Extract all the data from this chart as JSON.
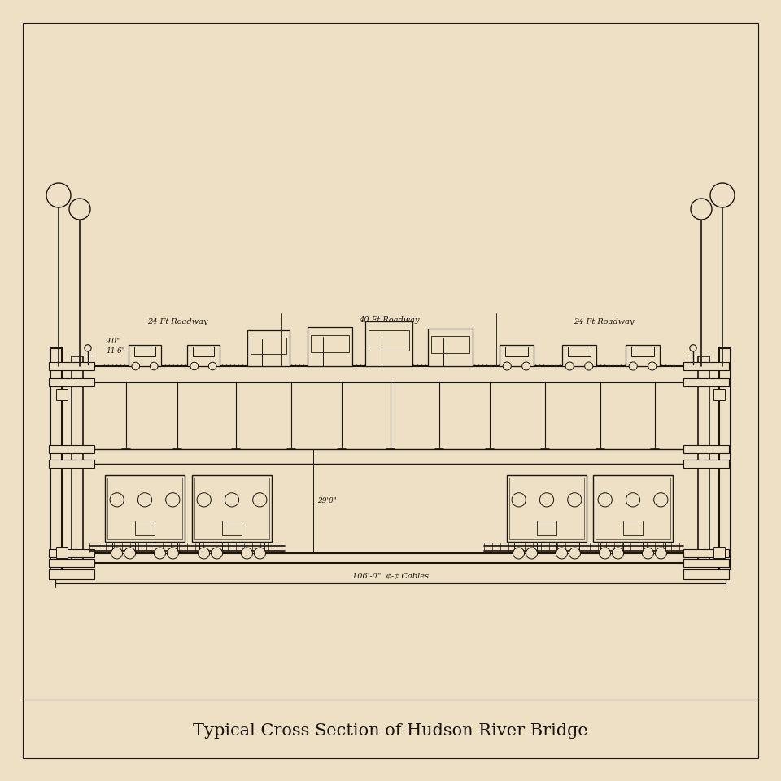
{
  "title": "Typical Cross Section of Hudson River Bridge",
  "background_color": "#ede0c4",
  "line_color": "#1a1510",
  "label_24ft_left": "24 Ft Roadway",
  "label_40ft": "40 Ft Roadway",
  "label_24ft_right": "24 Ft Roadway",
  "label_106": "106'-0\"  ¢-¢ Cables",
  "label_9ft": "9'0\"",
  "label_11ft6": "11'6\"",
  "label_29ft": "29'0\"",
  "title_fontsize": 15,
  "annotation_fontsize": 7.0
}
